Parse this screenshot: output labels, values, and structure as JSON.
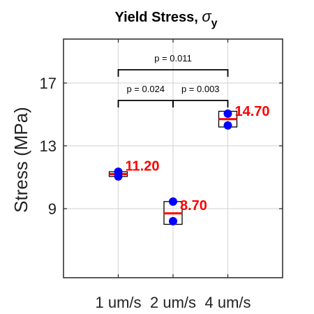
{
  "chart_data": {
    "type": "box",
    "title": "Yield Stress, ",
    "title_symbol": "σ",
    "title_subscript": "y",
    "ylabel": "Stress (MPa)",
    "xlabel": "",
    "ylim": [
      4.6,
      19.8
    ],
    "yticks": [
      9,
      13,
      17
    ],
    "grid": true,
    "categories": [
      "1 um/s",
      "2 um/s",
      "4 um/s"
    ],
    "groups": [
      {
        "category": "1 um/s",
        "box": [
          11.05,
          11.35
        ],
        "mean": 11.2,
        "mean_label": "11.20",
        "points": [
          11.05,
          11.35
        ]
      },
      {
        "category": "2 um/s",
        "box": [
          8.0,
          9.45
        ],
        "mean": 8.7,
        "mean_label": "8.70",
        "points": [
          8.2,
          9.45
        ]
      },
      {
        "category": "4 um/s",
        "box": [
          14.2,
          15.2
        ],
        "mean": 14.7,
        "mean_label": "14.70",
        "points": [
          14.3,
          15.05
        ]
      }
    ],
    "significance": [
      {
        "from": 0,
        "to": 1,
        "label": "p = 0.024",
        "level": 1
      },
      {
        "from": 1,
        "to": 2,
        "label": "p = 0.003",
        "level": 1
      },
      {
        "from": 0,
        "to": 2,
        "label": "p = 0.011",
        "level": 2
      }
    ],
    "colors": {
      "mean_line": "#ff0000",
      "mean_label": "#ff0000",
      "points": "#0000ff",
      "box_edge": "#000000",
      "grid": "#d9d9d9",
      "axes": "#262626"
    }
  }
}
